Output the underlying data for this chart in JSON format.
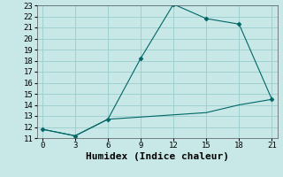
{
  "xlabel": "Humidex (Indice chaleur)",
  "background_color": "#c8e8e8",
  "grid_color": "#99cccc",
  "line_color": "#006666",
  "line1_x": [
    0,
    3,
    6,
    9,
    12,
    15,
    18,
    21
  ],
  "line1_y": [
    11.8,
    11.2,
    12.7,
    18.2,
    23.1,
    21.8,
    21.3,
    14.5
  ],
  "line2_x": [
    0,
    3,
    6,
    9,
    12,
    15,
    18,
    21
  ],
  "line2_y": [
    11.8,
    11.2,
    12.7,
    12.9,
    13.1,
    13.3,
    14.0,
    14.5
  ],
  "xlim": [
    -0.5,
    21.5
  ],
  "ylim": [
    11,
    23
  ],
  "xticks": [
    0,
    3,
    6,
    9,
    12,
    15,
    18,
    21
  ],
  "yticks": [
    11,
    12,
    13,
    14,
    15,
    16,
    17,
    18,
    19,
    20,
    21,
    22,
    23
  ],
  "marker": "D",
  "marker_size": 2.5,
  "linewidth": 0.8,
  "font_family": "monospace",
  "xlabel_fontsize": 8,
  "tick_fontsize": 6.5
}
